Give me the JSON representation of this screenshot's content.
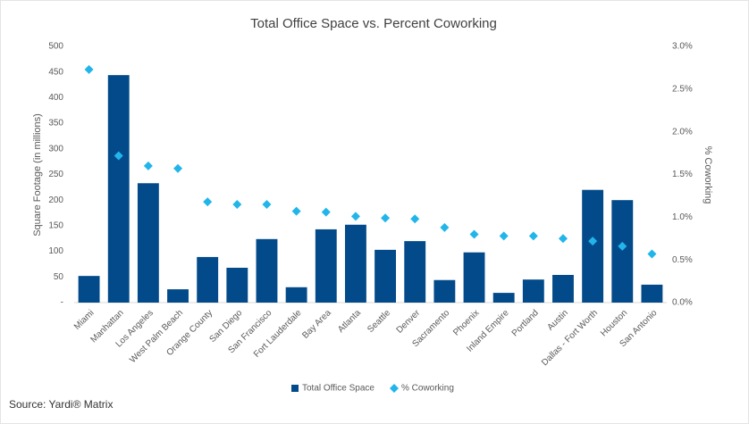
{
  "chart_data": {
    "type": "bar_scatter",
    "title": "Total Office Space vs. Percent Coworking",
    "y_label": "Square Footage (in millions)",
    "y2_label": "% Coworking",
    "source": "Source: Yardi® Matrix",
    "categories": [
      "Miami",
      "Manhattan",
      "Los Angeles",
      "West Palm Beach",
      "Orange County",
      "San Diego",
      "San Francisco",
      "Fort Lauderdale",
      "Bay Area",
      "Atlanta",
      "Seattle",
      "Denver",
      "Sacramento",
      "Phoenix",
      "Inland Empire",
      "Portland",
      "Austin",
      "Dallas - Fort Worth",
      "Houston",
      "San Antonio"
    ],
    "series": [
      {
        "name": "Total Office Space",
        "type": "bar",
        "color": "#034a8a",
        "values": [
          52,
          444,
          233,
          26,
          89,
          68,
          124,
          30,
          143,
          152,
          103,
          120,
          44,
          98,
          19,
          45,
          54,
          220,
          200,
          35
        ]
      },
      {
        "name": "% Coworking",
        "type": "scatter",
        "axis": "y2",
        "color": "#22b5ea",
        "values": [
          2.73,
          1.72,
          1.6,
          1.57,
          1.18,
          1.15,
          1.15,
          1.07,
          1.06,
          1.01,
          0.99,
          0.98,
          0.88,
          0.8,
          0.78,
          0.78,
          0.75,
          0.72,
          0.66,
          0.57
        ]
      }
    ],
    "ylim": [
      0,
      500
    ],
    "yticks": [
      {
        "value": 0,
        "label": "-"
      },
      50,
      100,
      150,
      200,
      250,
      300,
      350,
      400,
      450,
      500
    ],
    "y2lim": [
      0,
      3
    ],
    "y2ticks": [
      {
        "value": 0,
        "label": "0.0%"
      },
      {
        "value": 0.5,
        "label": "0.5%"
      },
      {
        "value": 1,
        "label": "1.0%"
      },
      {
        "value": 1.5,
        "label": "1.5%"
      },
      {
        "value": 2,
        "label": "2.0%"
      },
      {
        "value": 2.5,
        "label": "2.5%"
      },
      {
        "value": 3,
        "label": "3.0%"
      }
    ],
    "grid": false
  }
}
